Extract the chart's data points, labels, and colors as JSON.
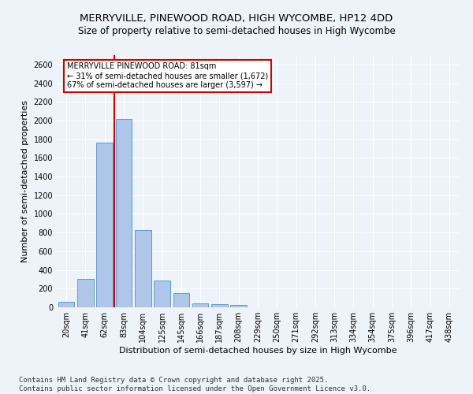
{
  "title1": "MERRYVILLE, PINEWOOD ROAD, HIGH WYCOMBE, HP12 4DD",
  "title2": "Size of property relative to semi-detached houses in High Wycombe",
  "xlabel": "Distribution of semi-detached houses by size in High Wycombe",
  "ylabel": "Number of semi-detached properties",
  "categories": [
    "20sqm",
    "41sqm",
    "62sqm",
    "83sqm",
    "104sqm",
    "125sqm",
    "145sqm",
    "166sqm",
    "187sqm",
    "208sqm",
    "229sqm",
    "250sqm",
    "271sqm",
    "292sqm",
    "313sqm",
    "334sqm",
    "354sqm",
    "375sqm",
    "396sqm",
    "417sqm",
    "438sqm"
  ],
  "values": [
    55,
    300,
    1760,
    2020,
    825,
    290,
    155,
    40,
    35,
    22,
    0,
    0,
    0,
    0,
    0,
    0,
    0,
    0,
    0,
    0,
    0
  ],
  "bar_color": "#aec6e8",
  "bar_edge_color": "#5a9fd4",
  "vline_color": "#cc0000",
  "annotation_box_text": "MERRYVILLE PINEWOOD ROAD: 81sqm\n← 31% of semi-detached houses are smaller (1,672)\n67% of semi-detached houses are larger (3,597) →",
  "ylim": [
    0,
    2700
  ],
  "yticks": [
    0,
    200,
    400,
    600,
    800,
    1000,
    1200,
    1400,
    1600,
    1800,
    2000,
    2200,
    2400,
    2600
  ],
  "footer_text": "Contains HM Land Registry data © Crown copyright and database right 2025.\nContains public sector information licensed under the Open Government Licence v3.0.",
  "bg_color": "#eef2f9",
  "grid_color": "#ffffff",
  "title_fontsize": 9.5,
  "subtitle_fontsize": 8.5,
  "axis_label_fontsize": 8,
  "tick_fontsize": 7,
  "footer_fontsize": 6.5
}
